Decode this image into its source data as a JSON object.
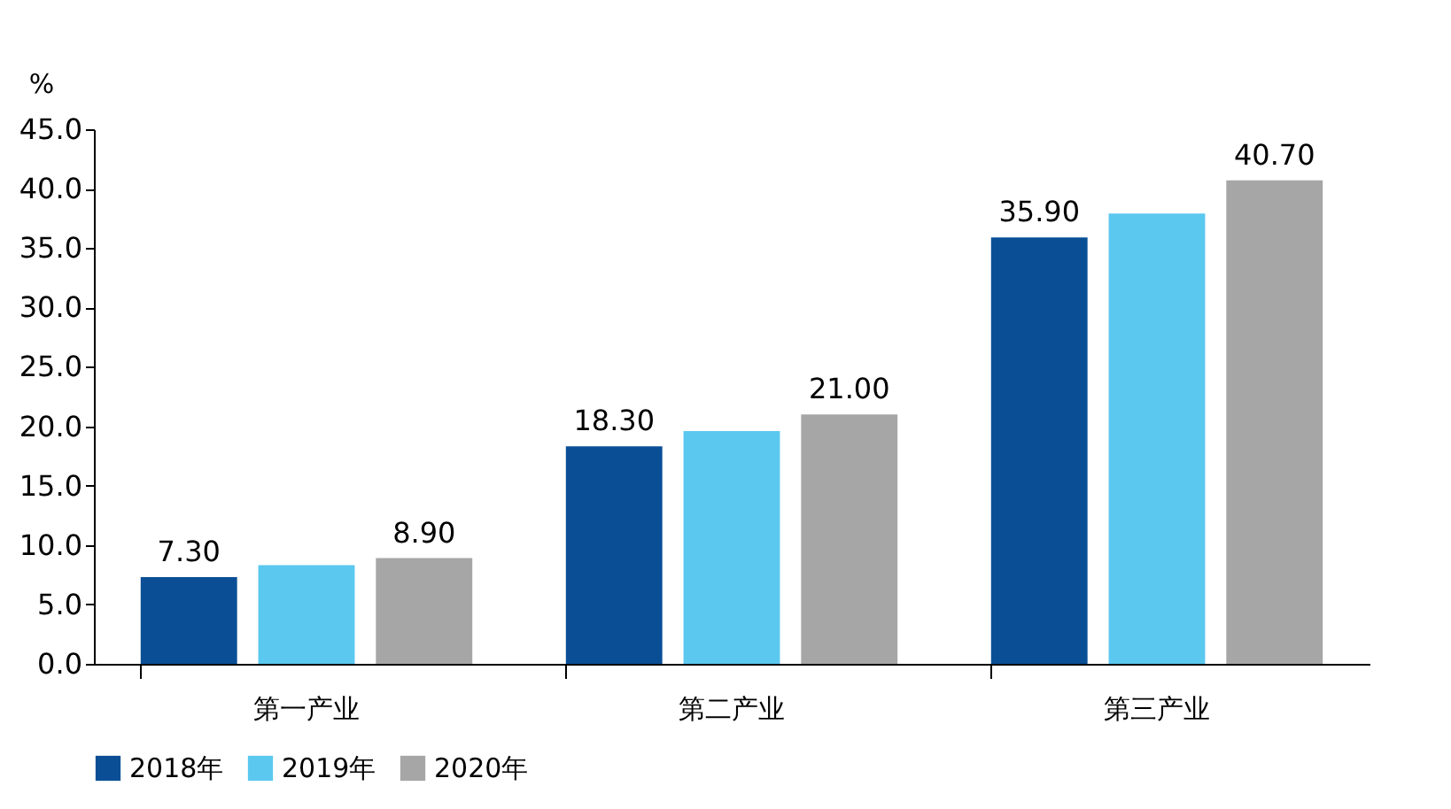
{
  "chart_data": {
    "type": "bar",
    "ylabel": "%",
    "categories": [
      "第一产业",
      "第二产业",
      "第三产业"
    ],
    "series": [
      {
        "name": "2018年",
        "color": "#0a4f96",
        "values": [
          7.3,
          18.3,
          35.9
        ],
        "value_labels": [
          "7.30",
          "18.30",
          "35.90"
        ]
      },
      {
        "name": "2019年",
        "color": "#5bc8f0",
        "values": [
          8.3,
          19.6,
          37.9
        ]
      },
      {
        "name": "2020年",
        "color": "#a6a6a6",
        "values": [
          8.9,
          21.0,
          40.7
        ],
        "value_labels": [
          "8.90",
          "21.00",
          "40.70"
        ]
      }
    ],
    "ylim": [
      0,
      45
    ],
    "yticks": [
      {
        "value": 0,
        "label": "0.0"
      },
      {
        "value": 5,
        "label": "5.0"
      },
      {
        "value": 10,
        "label": "10.0"
      },
      {
        "value": 15,
        "label": "15.0"
      },
      {
        "value": 20,
        "label": "20.0"
      },
      {
        "value": 25,
        "label": "25.0"
      },
      {
        "value": 30,
        "label": "30.0"
      },
      {
        "value": 35,
        "label": "35.0"
      },
      {
        "value": 40,
        "label": "40.0"
      },
      {
        "value": 45,
        "label": "45.0"
      }
    ],
    "grid": false,
    "legend": "bottom"
  }
}
